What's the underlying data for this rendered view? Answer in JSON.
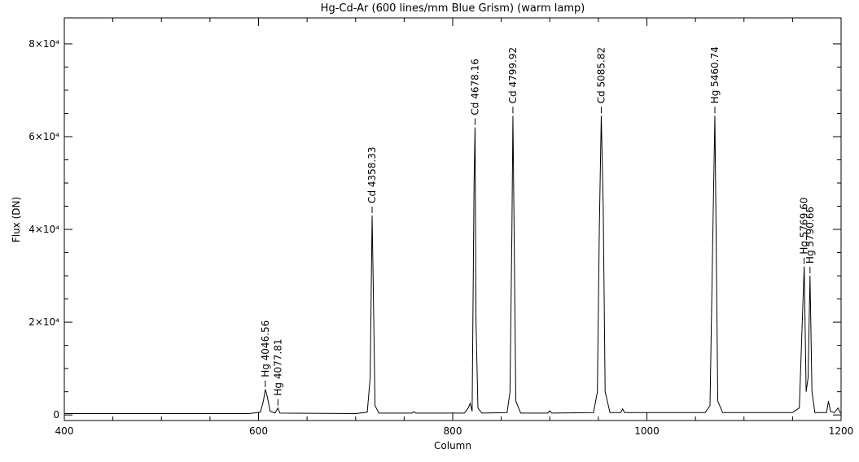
{
  "chart_data": {
    "type": "line",
    "title": "Hg-Cd-Ar (600 lines/mm Blue Grism) (warm lamp)",
    "x_label": "Column",
    "y_label": "Flux (DN)",
    "x": [
      400,
      590,
      602,
      605,
      607,
      609,
      612,
      617,
      620,
      622,
      700,
      712,
      715,
      717,
      718,
      720,
      724,
      758,
      760,
      762,
      812,
      816,
      818,
      820,
      822,
      823,
      824,
      826,
      830,
      856,
      859,
      861,
      862,
      863,
      865,
      870,
      898,
      900,
      902,
      945,
      949,
      951,
      953,
      955,
      957,
      962,
      973,
      975,
      977,
      1060,
      1065,
      1068,
      1070,
      1071,
      1073,
      1078,
      1150,
      1157,
      1160,
      1162,
      1164,
      1166,
      1168,
      1170,
      1173,
      1185,
      1187,
      1189,
      1193,
      1197,
      1199,
      1200
    ],
    "values": [
      300,
      300,
      600,
      3000,
      5500,
      4000,
      800,
      400,
      1500,
      400,
      300,
      600,
      8000,
      43000,
      30000,
      2000,
      400,
      400,
      700,
      400,
      400,
      1500,
      2500,
      800,
      50000,
      62000,
      20000,
      1500,
      400,
      500,
      5000,
      40000,
      64500,
      45000,
      3000,
      400,
      400,
      900,
      400,
      500,
      5000,
      40000,
      64500,
      45000,
      5000,
      500,
      500,
      1300,
      500,
      500,
      2000,
      40000,
      64500,
      45000,
      3000,
      500,
      500,
      1500,
      20000,
      32000,
      5000,
      8000,
      30000,
      5000,
      500,
      500,
      3000,
      800,
      500,
      1500,
      500,
      400
    ],
    "color": "#000000",
    "xlim": [
      400,
      1200
    ],
    "xticks": [
      400,
      600,
      800,
      1000,
      1200
    ],
    "xminorticks": [
      450,
      500,
      550,
      650,
      700,
      750,
      850,
      900,
      950,
      1050,
      1100,
      1150
    ],
    "ylim": [
      -1200,
      85600
    ],
    "yticks": [
      0,
      {
        "value": 20000,
        "label": "2×10⁴"
      },
      {
        "value": 40000,
        "label": "4×10⁴"
      },
      {
        "value": 60000,
        "label": "6×10⁴"
      },
      {
        "value": 80000,
        "label": "8×10⁴"
      }
    ],
    "yminorticks": [
      5000,
      10000,
      15000,
      25000,
      30000,
      35000,
      45000,
      50000,
      55000,
      65000,
      70000,
      75000
    ],
    "annotations": [
      {
        "text": "Hg 4046.56",
        "x": 607
      },
      {
        "text": "Hg 4077.81",
        "x": 620
      },
      {
        "text": "Cd 4358.33",
        "x": 717
      },
      {
        "text": "Cd 4678.16",
        "x": 823
      },
      {
        "text": "Cd 4799.92",
        "x": 862
      },
      {
        "text": "Cd 5085.82",
        "x": 953
      },
      {
        "text": "Hg 5460.74",
        "x": 1070
      },
      {
        "text": "Hg 5769.60",
        "x": 1162
      },
      {
        "text": "Hg 5790.66",
        "x": 1168
      }
    ]
  }
}
